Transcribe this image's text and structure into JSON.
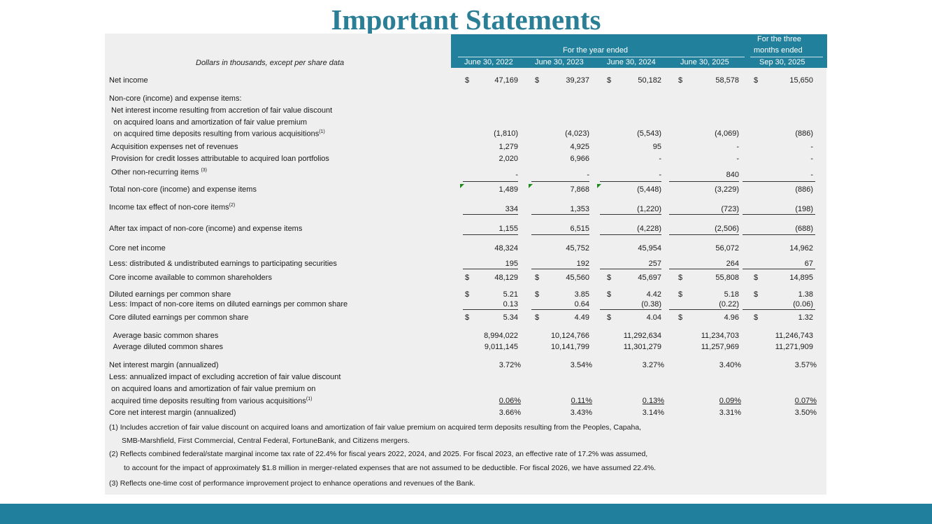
{
  "title": "Important Statements",
  "header": {
    "units_note": "Dollars in thousands, except per share data",
    "group_year": "For the year ended",
    "group_quarter_line1": "For the three",
    "group_quarter_line2": "months ended",
    "columns": [
      "June 30, 2022",
      "June 30, 2023",
      "June 30, 2024",
      "June 30, 2025",
      "Sep 30, 2025"
    ]
  },
  "rows": [
    {
      "label": "Net income",
      "dollar": true,
      "values": [
        "47,169",
        "39,237",
        "50,182",
        "58,578",
        "15,650"
      ]
    },
    {
      "label": "Non-core (income) and expense items:",
      "values": []
    },
    {
      "label": " Net interest income resulting from accretion of fair value discount",
      "values": []
    },
    {
      "label": "  on acquired loans and amortization of fair value premium",
      "values": []
    },
    {
      "label": "  on acquired time deposits resulting from various acquisitions",
      "sup": "(1)",
      "values": [
        "(1,810)",
        "(4,023)",
        "(5,543)",
        "(4,069)",
        "(886)"
      ]
    },
    {
      "label": " Acquisition expenses net of revenues",
      "values": [
        "1,279",
        "4,925",
        "95",
        "-",
        "-"
      ]
    },
    {
      "label": " Provision for credit losses attributable to acquired loan portfolios",
      "values": [
        "2,020",
        "6,966",
        "-",
        "-",
        "-"
      ]
    },
    {
      "label": " Other non-recurring items ",
      "sup": "(3)",
      "values": [
        "-",
        "-",
        "-",
        "840",
        "-"
      ]
    },
    {
      "label": "Total non-core (income) and expense items",
      "values": [
        "1,489",
        "7,868",
        "(5,448)",
        "(3,229)",
        "(886)"
      ]
    },
    {
      "label": "Income tax effect of non-core items",
      "sup": "(2)",
      "values": [
        "334",
        "1,353",
        "(1,220)",
        "(723)",
        "(198)"
      ]
    },
    {
      "label": "After tax impact of non-core (income) and expense items",
      "values": [
        "1,155",
        "6,515",
        "(4,228)",
        "(2,506)",
        "(688)"
      ]
    },
    {
      "label": "Core net income",
      "values": [
        "48,324",
        "45,752",
        "45,954",
        "56,072",
        "14,962"
      ]
    },
    {
      "label": "Less: distributed & undistributed earnings to participating securities",
      "values": [
        "195",
        "192",
        "257",
        "264",
        "67"
      ]
    },
    {
      "label": "Core income available to common shareholders",
      "dollar": true,
      "values": [
        "48,129",
        "45,560",
        "45,697",
        "55,808",
        "14,895"
      ]
    },
    {
      "label": "Diluted earnings per common share",
      "dollar": true,
      "values": [
        "5.21",
        "3.85",
        "4.42",
        "5.18",
        "1.38"
      ]
    },
    {
      "label": "Less: Impact of non-core items on diluted earnings per common share",
      "values": [
        "0.13",
        "0.64",
        "(0.38)",
        "(0.22)",
        "(0.06)"
      ]
    },
    {
      "label": "Core diluted earnings per common share",
      "dollar": true,
      "values": [
        "5.34",
        "4.49",
        "4.04",
        "4.96",
        "1.32"
      ]
    },
    {
      "label": "  Average basic common shares",
      "values": [
        "8,994,022",
        "10,124,766",
        "11,292,634",
        "11,234,703",
        "11,246,743"
      ]
    },
    {
      "label": "  Average diluted common shares",
      "values": [
        "9,011,145",
        "10,141,799",
        "11,301,279",
        "11,257,969",
        "11,271,909"
      ]
    },
    {
      "label": "Net interest margin (annualized)",
      "values": [
        "3.72%",
        "3.54%",
        "3.27%",
        "3.40%",
        "3.57%"
      ]
    },
    {
      "label": "Less: annualized impact of excluding accretion of fair value discount",
      "values": []
    },
    {
      "label": " on acquired loans and amortization of fair value premium on",
      "values": []
    },
    {
      "label": " acquired time deposits resulting from various acquisitions",
      "sup": "(1)",
      "values": [
        "0.06%",
        "0.11%",
        "0.13%",
        "0.09%",
        "0.07%"
      ]
    },
    {
      "label": "Core net interest margin (annualized)",
      "values": [
        "3.66%",
        "3.43%",
        "3.14%",
        "3.31%",
        "3.50%"
      ]
    }
  ],
  "dollar_sign": "$",
  "footnotes": [
    "(1) Includes accretion of fair value discount on acquired loans and amortization of fair value premium on acquired term deposits resulting from the Peoples, Capaha,",
    "SMB-Marshfield, First Commercial, Central Federal, FortuneBank, and Citizens mergers.",
    "(2) Reflects combined federal/state marginal income tax rate of 22.4% for fiscal years 2022, 2024, and 2025. For fiscal 2023, an effective rate of 17.2% was assumed,",
    "to account for the impact of approximately $1.8 million in merger-related expenses that are not assumed to be deductible. For fiscal 2026, we have assumed 22.4%.",
    "(3) Reflects one-time cost of performance improvement project to enhance operations and revenues of the Bank."
  ],
  "colors": {
    "accent": "#21809c",
    "title": "#2a7e96",
    "panel": "#efefef",
    "error_marker": "#1e8a1e"
  }
}
